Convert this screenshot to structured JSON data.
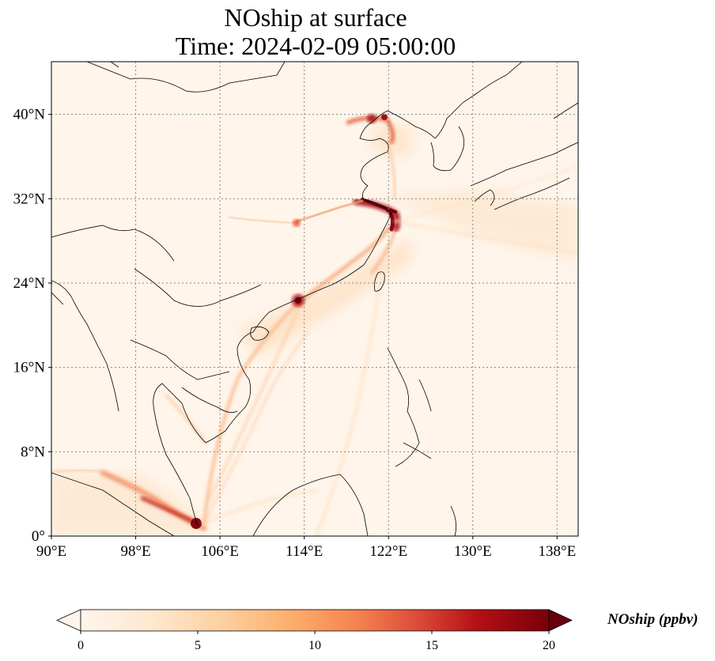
{
  "title": {
    "line1": "NOship at surface",
    "line2": "Time: 2024-02-09 05:00:00"
  },
  "map": {
    "projection": "PlateCarree",
    "lon_range": [
      90,
      140
    ],
    "lat_range": [
      0,
      45
    ],
    "lon_ticks": [
      {
        "value": 90,
        "label": "90°E"
      },
      {
        "value": 98,
        "label": "98°E"
      },
      {
        "value": 106,
        "label": "106°E"
      },
      {
        "value": 114,
        "label": "114°E"
      },
      {
        "value": 122,
        "label": "122°E"
      },
      {
        "value": 130,
        "label": "130°E"
      },
      {
        "value": 138,
        "label": "138°E"
      }
    ],
    "lat_ticks": [
      {
        "value": 0,
        "label": "0°"
      },
      {
        "value": 8,
        "label": "8°N"
      },
      {
        "value": 16,
        "label": "16°N"
      },
      {
        "value": 24,
        "label": "24°N"
      },
      {
        "value": 32,
        "label": "32°N"
      },
      {
        "value": 40,
        "label": "40°N"
      }
    ],
    "gridlines": "dotted",
    "background_color": "#fff5eb",
    "coastline_color": "#000000"
  },
  "colorbar": {
    "label": "NOship (ppbv)",
    "vmin": 0,
    "vmax": 20,
    "extend": "both",
    "cmap": "OrRd",
    "ticks": [
      {
        "value": 0,
        "label": "0"
      },
      {
        "value": 5,
        "label": "5"
      },
      {
        "value": 10,
        "label": "10"
      },
      {
        "value": 15,
        "label": "15"
      },
      {
        "value": 20,
        "label": "20"
      }
    ],
    "colors": [
      "#fff5eb",
      "#fee6ce",
      "#fdd0a2",
      "#fdae6b",
      "#f16913",
      "#d94801",
      "#a50f15",
      "#67000d"
    ]
  }
}
